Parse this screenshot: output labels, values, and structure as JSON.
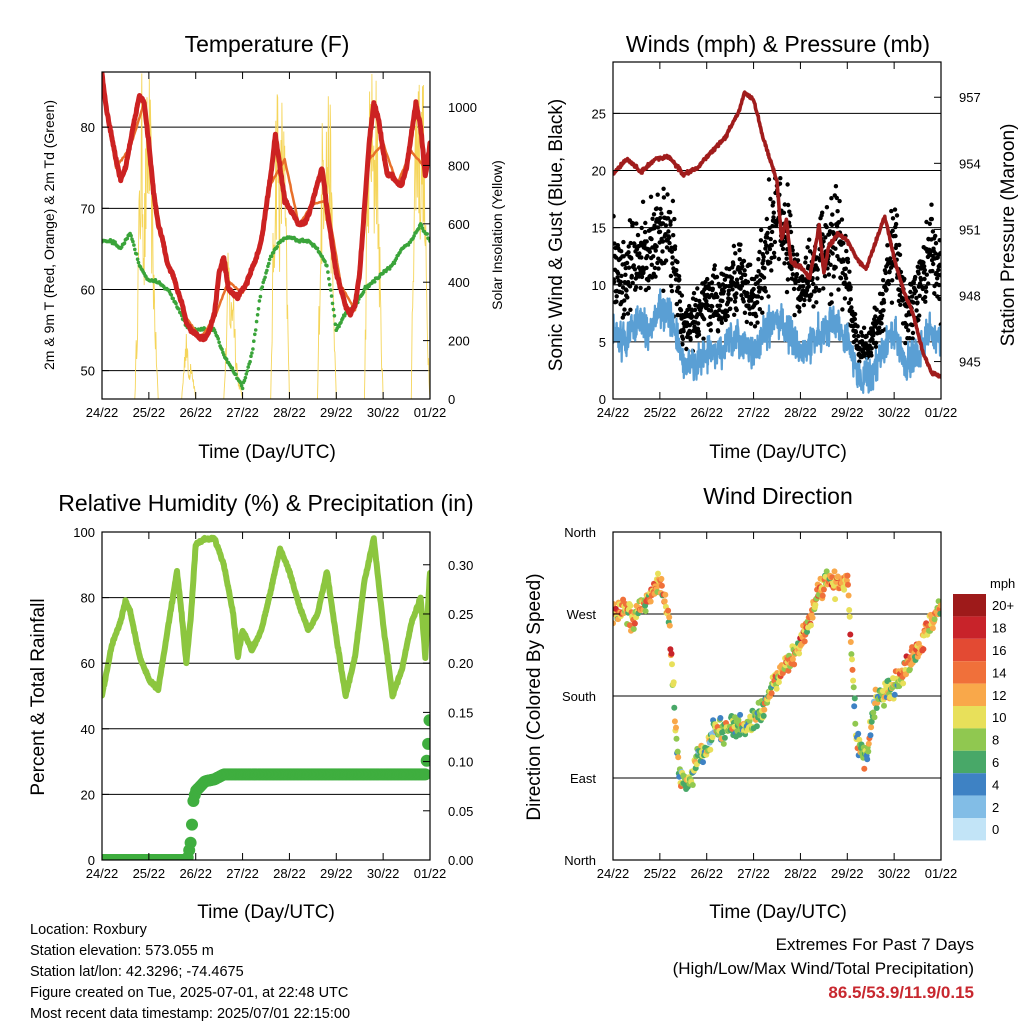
{
  "chart_data": [
    {
      "id": "temperature",
      "type": "line",
      "title": "Temperature (F)",
      "xlabel": "Time (Day/UTC)",
      "ylabel": "2m & 9m T (Red, Orange) & 2m Td (Green)",
      "y2label": "Solar Insolation (Yellow)",
      "x_ticks": [
        "24/22",
        "25/22",
        "26/22",
        "27/22",
        "28/22",
        "29/22",
        "30/22",
        "01/22"
      ],
      "xlim": [
        0,
        7
      ],
      "ylim": [
        46.5,
        86.8
      ],
      "y_ticks": [
        50,
        60,
        70,
        80
      ],
      "y2lim": [
        0,
        1120
      ],
      "y2_ticks": [
        0,
        200,
        400,
        600,
        800,
        1000
      ],
      "grid": "horizontal",
      "colors": {
        "temp": "#cc2222",
        "temp9m": "#e8702a",
        "dewpoint": "#3aa43a",
        "solar": "#f5d55a"
      },
      "series": [
        {
          "key": "temp",
          "name": "2m T",
          "axis": "left",
          "x": [
            0,
            0.1,
            0.2,
            0.3,
            0.4,
            0.5,
            0.6,
            0.7,
            0.8,
            0.9,
            1.0,
            1.1,
            1.2,
            1.3,
            1.4,
            1.5,
            1.6,
            1.7,
            1.8,
            1.9,
            2.0,
            2.1,
            2.2,
            2.3,
            2.4,
            2.5,
            2.6,
            2.7,
            2.8,
            2.9,
            3.0,
            3.1,
            3.2,
            3.3,
            3.4,
            3.5,
            3.6,
            3.7,
            3.8,
            3.9,
            4.0,
            4.1,
            4.2,
            4.3,
            4.4,
            4.5,
            4.6,
            4.7,
            4.8,
            4.9,
            5.0,
            5.1,
            5.2,
            5.3,
            5.4,
            5.5,
            5.6,
            5.7,
            5.8,
            5.9,
            6.0,
            6.1,
            6.2,
            6.3,
            6.4,
            6.5,
            6.6,
            6.7,
            6.8,
            6.9,
            7.0
          ],
          "y": [
            86.5,
            82,
            79,
            76,
            73.5,
            75,
            78,
            81,
            84,
            83,
            78,
            72,
            68,
            66,
            63,
            62,
            60,
            58.5,
            56,
            55,
            54.5,
            54,
            54,
            55,
            57,
            62,
            64,
            60,
            59.5,
            59,
            60,
            61,
            62.5,
            64,
            66,
            70,
            74,
            79,
            75,
            71,
            70,
            69,
            68,
            68,
            69,
            71,
            73,
            75,
            70,
            66,
            62,
            60,
            58,
            57,
            58,
            62,
            70,
            78,
            83,
            81,
            77,
            74,
            74,
            73,
            73,
            75,
            79,
            83,
            80,
            74,
            78
          ]
        },
        {
          "key": "temp9m",
          "name": "9m T",
          "axis": "left",
          "x": [
            0,
            0.3,
            0.6,
            0.9,
            1.2,
            1.5,
            1.8,
            2.1,
            2.4,
            2.7,
            3.0,
            3.3,
            3.6,
            3.9,
            4.2,
            4.5,
            4.8,
            5.1,
            5.4,
            5.7,
            6.0,
            6.3,
            6.6,
            6.9,
            7.0
          ],
          "y": [
            86,
            75,
            77.5,
            83,
            68,
            61.5,
            56.5,
            54,
            56.5,
            61,
            59.5,
            63.5,
            73,
            76,
            68,
            70.5,
            71,
            60.5,
            57.5,
            76,
            78,
            73,
            77,
            75,
            77.5
          ]
        },
        {
          "key": "dewpoint",
          "name": "2m Td",
          "axis": "left",
          "x": [
            0,
            0.2,
            0.4,
            0.6,
            0.8,
            1.0,
            1.2,
            1.4,
            1.6,
            1.8,
            2.0,
            2.2,
            2.4,
            2.6,
            2.8,
            3.0,
            3.2,
            3.4,
            3.6,
            3.8,
            4.0,
            4.2,
            4.4,
            4.6,
            4.8,
            5.0,
            5.2,
            5.4,
            5.6,
            5.8,
            6.0,
            6.2,
            6.4,
            6.6,
            6.8,
            7.0
          ],
          "y": [
            66,
            66,
            65,
            67,
            63,
            61,
            61,
            60,
            58,
            55.5,
            55,
            55,
            55,
            52,
            50,
            48,
            52,
            60,
            64,
            66,
            66.5,
            66,
            66,
            65,
            63,
            55,
            57,
            58,
            60,
            61,
            62,
            63,
            65,
            66,
            68,
            66
          ]
        },
        {
          "key": "solar",
          "name": "Solar Insolation",
          "axis": "right",
          "x": [
            0,
            0.7,
            0.75,
            0.8,
            0.85,
            0.9,
            0.95,
            1.0,
            1.05,
            1.1,
            1.15,
            1.2,
            1.4,
            1.7,
            1.75,
            1.8,
            1.85,
            1.9,
            2.0,
            2.4,
            2.6,
            2.65,
            2.7,
            2.75,
            2.8,
            2.85,
            2.9,
            3.0,
            3.4,
            3.6,
            3.65,
            3.7,
            3.75,
            3.8,
            3.85,
            3.9,
            3.95,
            4.0,
            4.4,
            4.6,
            4.65,
            4.7,
            4.75,
            4.8,
            4.85,
            4.9,
            4.95,
            5.0,
            5.4,
            5.6,
            5.65,
            5.7,
            5.75,
            5.8,
            5.85,
            5.9,
            5.95,
            6.0,
            6.4,
            6.6,
            6.65,
            6.7,
            6.75,
            6.8,
            6.85,
            6.9,
            6.95,
            7.0
          ],
          "y": [
            0,
            0,
            300,
            700,
            1000,
            600,
            900,
            1050,
            800,
            500,
            200,
            0,
            0,
            0,
            120,
            250,
            80,
            150,
            0,
            0,
            0,
            200,
            500,
            300,
            420,
            200,
            80,
            0,
            0,
            0,
            500,
            900,
            1050,
            700,
            1000,
            800,
            400,
            0,
            0,
            0,
            500,
            850,
            1050,
            900,
            1000,
            700,
            300,
            0,
            0,
            0,
            600,
            950,
            1060,
            800,
            1100,
            700,
            300,
            0,
            0,
            0,
            700,
            1000,
            1100,
            850,
            1050,
            600,
            250,
            0
          ]
        }
      ]
    },
    {
      "id": "winds",
      "type": "scatter",
      "title": "Winds (mph) & Pressure (mb)",
      "xlabel": "Time (Day/UTC)",
      "ylabel": "Sonic Wind & Gust (Blue, Black)",
      "y2label": "Station Pressure (Maroon)",
      "x_ticks": [
        "24/22",
        "25/22",
        "26/22",
        "27/22",
        "28/22",
        "29/22",
        "30/22",
        "01/22"
      ],
      "xlim": [
        0,
        7
      ],
      "ylim": [
        0,
        29.5
      ],
      "y_ticks": [
        0,
        5,
        10,
        15,
        20,
        25
      ],
      "y2lim": [
        943.3,
        958.6
      ],
      "y2_ticks": [
        945,
        948,
        951,
        954,
        957
      ],
      "grid": "horizontal",
      "colors": {
        "wind": "#5a9fd4",
        "gust": "#000000",
        "pressure": "#a01c1c"
      },
      "series": [
        {
          "key": "wind",
          "name": "Sonic Wind",
          "axis": "left",
          "x": [
            0,
            0.25,
            0.5,
            0.75,
            1.0,
            1.25,
            1.5,
            1.75,
            2.0,
            2.25,
            2.5,
            2.75,
            3.0,
            3.25,
            3.5,
            3.75,
            4.0,
            4.25,
            4.5,
            4.75,
            5.0,
            5.25,
            5.5,
            5.75,
            6.0,
            6.25,
            6.5,
            6.75,
            7.0
          ],
          "y": [
            6,
            5,
            7,
            6,
            8,
            7,
            3,
            3,
            4,
            4,
            5,
            5,
            4,
            6,
            7,
            6,
            4,
            5,
            6,
            7,
            5,
            2,
            2,
            4,
            6,
            3,
            4,
            6,
            5
          ]
        },
        {
          "key": "gust",
          "name": "Gust",
          "axis": "left",
          "x": [
            0,
            0.25,
            0.5,
            0.75,
            1.0,
            1.25,
            1.5,
            1.75,
            2.0,
            2.25,
            2.5,
            2.75,
            3.0,
            3.25,
            3.5,
            3.75,
            4.0,
            4.25,
            4.5,
            4.75,
            5.0,
            5.25,
            5.5,
            5.75,
            6.0,
            6.25,
            6.5,
            6.75,
            7.0
          ],
          "y": [
            12,
            10,
            13,
            12,
            15,
            14,
            6,
            7,
            9,
            8,
            10,
            11,
            8,
            13,
            16,
            14,
            9,
            11,
            13,
            14,
            11,
            4,
            5,
            8,
            14,
            7,
            9,
            13,
            11
          ]
        },
        {
          "key": "pressure",
          "name": "Station Pressure",
          "axis": "right",
          "x": [
            0,
            0.3,
            0.6,
            0.9,
            1.2,
            1.5,
            1.8,
            2.1,
            2.4,
            2.7,
            2.8,
            3.0,
            3.2,
            3.3,
            3.5,
            3.6,
            3.7,
            3.8,
            4.0,
            4.2,
            4.4,
            4.5,
            4.6,
            4.8,
            5.0,
            5.2,
            5.4,
            5.6,
            5.8,
            6.0,
            6.2,
            6.4,
            6.6,
            6.8,
            7.0
          ],
          "y": [
            953.5,
            954.2,
            953.6,
            954.2,
            954.3,
            953.5,
            953.8,
            954.5,
            955.2,
            956.4,
            957.2,
            956.9,
            955.2,
            954.5,
            953.2,
            950.5,
            951.5,
            949.5,
            949.3,
            948.8,
            951.2,
            949.0,
            950.2,
            950.8,
            950.5,
            949.7,
            949.2,
            950.4,
            951.6,
            949.7,
            948.2,
            947.2,
            945.5,
            944.5,
            944.3
          ]
        }
      ]
    },
    {
      "id": "humidity",
      "type": "line",
      "title": "Relative Humidity (%) & Precipitation (in)",
      "xlabel": "Time (Day/UTC)",
      "ylabel": "Percent & Total Rainfall",
      "x_ticks": [
        "24/22",
        "25/22",
        "26/22",
        "27/22",
        "28/22",
        "29/22",
        "30/22",
        "01/22"
      ],
      "xlim": [
        0,
        7
      ],
      "ylim": [
        0,
        100
      ],
      "y_ticks": [
        0,
        20,
        40,
        60,
        80,
        100
      ],
      "y2lim": [
        0,
        0.3333
      ],
      "y2_ticks": [
        "0.00",
        "0.05",
        "0.10",
        "0.15",
        "0.20",
        "0.25",
        "0.30"
      ],
      "grid": "horizontal",
      "colors": {
        "rh": "#8cc63f",
        "precip": "#3fae3f"
      },
      "series": [
        {
          "key": "rh",
          "name": "Relative Humidity",
          "axis": "left",
          "x": [
            0,
            0.2,
            0.4,
            0.5,
            0.6,
            0.8,
            1.0,
            1.2,
            1.4,
            1.6,
            1.7,
            1.8,
            1.9,
            2.0,
            2.2,
            2.4,
            2.6,
            2.8,
            2.9,
            3.0,
            3.2,
            3.4,
            3.6,
            3.8,
            4.0,
            4.2,
            4.4,
            4.6,
            4.8,
            5.0,
            5.2,
            5.4,
            5.6,
            5.8,
            6.0,
            6.2,
            6.4,
            6.6,
            6.8,
            6.9,
            7.0
          ],
          "y": [
            50,
            65,
            73,
            79,
            76,
            62,
            55,
            52,
            70,
            88,
            75,
            60,
            75,
            96,
            98,
            98,
            90,
            75,
            62,
            70,
            64,
            70,
            82,
            95,
            88,
            78,
            70,
            75,
            88,
            68,
            50,
            62,
            85,
            98,
            72,
            50,
            58,
            72,
            80,
            62,
            88
          ]
        },
        {
          "key": "precip",
          "name": "Total Precipitation",
          "axis": "right",
          "x": [
            0,
            1.5,
            1.82,
            1.9,
            1.95,
            2.0,
            2.2,
            2.4,
            2.6,
            3.0,
            4.0,
            5.0,
            6.0,
            6.9,
            6.95,
            7.0
          ],
          "y": [
            0,
            0,
            0,
            0.02,
            0.06,
            0.07,
            0.08,
            0.082,
            0.087,
            0.087,
            0.087,
            0.087,
            0.087,
            0.087,
            0.11,
            0.15
          ]
        }
      ]
    },
    {
      "id": "wind-direction",
      "type": "scatter",
      "title": "Wind Direction",
      "xlabel": "Time (Day/UTC)",
      "ylabel": "Direction (Colored By Speed)",
      "x_ticks": [
        "24/22",
        "25/22",
        "26/22",
        "27/22",
        "28/22",
        "29/22",
        "30/22",
        "01/22"
      ],
      "xlim": [
        0,
        7
      ],
      "ylim": [
        0,
        360
      ],
      "y_ticks": [
        "North",
        "East",
        "South",
        "West",
        "North"
      ],
      "grid": "horizontal",
      "colorbar": {
        "unit": "mph",
        "labels": [
          "20+",
          "18",
          "16",
          "14",
          "12",
          "10",
          "8",
          "6",
          "4",
          "2",
          "0"
        ],
        "colors": [
          "#9e1a1a",
          "#c8232a",
          "#e34a33",
          "#f0703a",
          "#f9a84a",
          "#e8e05a",
          "#90c850",
          "#48a868",
          "#3e82c4",
          "#82bde6",
          "#c2e4f7"
        ]
      },
      "series": [
        {
          "key": "direction",
          "name": "Wind Direction",
          "x": [
            0,
            0.2,
            0.4,
            0.6,
            0.8,
            1.0,
            1.2,
            1.4,
            1.6,
            1.8,
            2.0,
            2.2,
            2.4,
            2.6,
            2.8,
            3.0,
            3.2,
            3.4,
            3.6,
            3.8,
            4.0,
            4.2,
            4.4,
            4.6,
            4.8,
            5.0,
            5.2,
            5.4,
            5.6,
            5.8,
            6.0,
            6.2,
            6.4,
            6.6,
            6.8,
            7.0
          ],
          "y": [
            270,
            275,
            265,
            280,
            290,
            310,
            260,
            95,
            80,
            110,
            125,
            145,
            140,
            150,
            145,
            150,
            165,
            190,
            205,
            220,
            240,
            265,
            300,
            305,
            300,
            310,
            130,
            110,
            180,
            185,
            190,
            210,
            220,
            240,
            260,
            280
          ]
        }
      ]
    }
  ],
  "info": {
    "location": "Location: Roxbury",
    "elevation": "Station elevation: 573.055 m",
    "latlon": "Station lat/lon: 42.3296; -74.4675",
    "created": "Figure created on Tue, 2025-07-01, at 22:48 UTC",
    "recent": "Most recent data timestamp: 2025/07/01 22:15:00"
  },
  "extremes": {
    "line1": "Extremes For Past 7 Days",
    "line2": "(High/Low/Max Wind/Total Precipitation)",
    "values": "86.5/53.9/11.9/0.15"
  }
}
